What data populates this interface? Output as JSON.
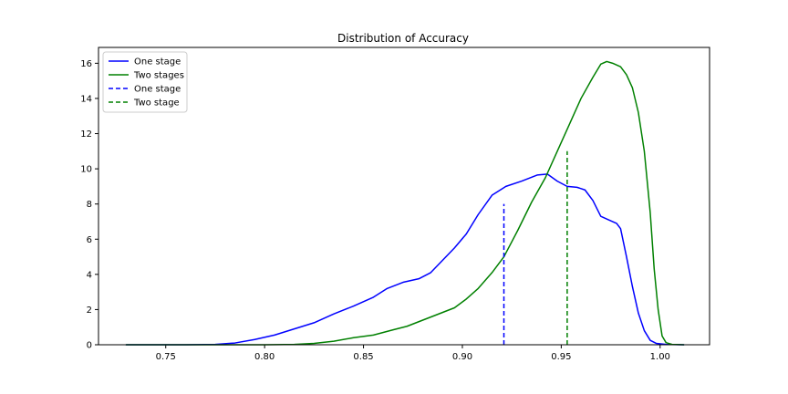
{
  "chart_data": {
    "type": "line",
    "title": "Distribution of Accuracy",
    "xlabel": "",
    "ylabel": "",
    "xlim": [
      0.716,
      1.025
    ],
    "ylim": [
      0,
      16.9
    ],
    "x_ticks": [
      0.75,
      0.8,
      0.85,
      0.9,
      0.95,
      1.0
    ],
    "x_tick_labels": [
      "0.75",
      "0.80",
      "0.85",
      "0.90",
      "0.95",
      "1.00"
    ],
    "y_ticks": [
      0,
      2,
      4,
      6,
      8,
      10,
      12,
      14,
      16
    ],
    "y_tick_labels": [
      "0",
      "2",
      "4",
      "6",
      "8",
      "10",
      "12",
      "14",
      "16"
    ],
    "grid": false,
    "legend_position": "top-left",
    "series": [
      {
        "name": "One stage",
        "style": "solid",
        "color": "#0000ff",
        "points": [
          [
            0.73,
            0.0
          ],
          [
            0.76,
            0.0
          ],
          [
            0.775,
            0.02
          ],
          [
            0.785,
            0.1
          ],
          [
            0.795,
            0.3
          ],
          [
            0.805,
            0.55
          ],
          [
            0.815,
            0.9
          ],
          [
            0.825,
            1.25
          ],
          [
            0.835,
            1.75
          ],
          [
            0.845,
            2.2
          ],
          [
            0.855,
            2.7
          ],
          [
            0.862,
            3.2
          ],
          [
            0.87,
            3.55
          ],
          [
            0.878,
            3.75
          ],
          [
            0.884,
            4.1
          ],
          [
            0.89,
            4.8
          ],
          [
            0.896,
            5.5
          ],
          [
            0.902,
            6.3
          ],
          [
            0.908,
            7.4
          ],
          [
            0.915,
            8.5
          ],
          [
            0.922,
            9.0
          ],
          [
            0.93,
            9.3
          ],
          [
            0.938,
            9.65
          ],
          [
            0.943,
            9.7
          ],
          [
            0.948,
            9.3
          ],
          [
            0.953,
            9.0
          ],
          [
            0.958,
            8.95
          ],
          [
            0.962,
            8.8
          ],
          [
            0.966,
            8.2
          ],
          [
            0.97,
            7.3
          ],
          [
            0.975,
            7.05
          ],
          [
            0.978,
            6.9
          ],
          [
            0.98,
            6.6
          ],
          [
            0.983,
            5.0
          ],
          [
            0.986,
            3.3
          ],
          [
            0.989,
            1.8
          ],
          [
            0.992,
            0.8
          ],
          [
            0.995,
            0.25
          ],
          [
            0.998,
            0.08
          ],
          [
            1.003,
            0.02
          ],
          [
            1.012,
            0.0
          ]
        ]
      },
      {
        "name": "Two stages",
        "style": "solid",
        "color": "#008000",
        "points": [
          [
            0.73,
            0.0
          ],
          [
            0.8,
            0.0
          ],
          [
            0.815,
            0.02
          ],
          [
            0.825,
            0.08
          ],
          [
            0.835,
            0.2
          ],
          [
            0.845,
            0.4
          ],
          [
            0.855,
            0.55
          ],
          [
            0.865,
            0.85
          ],
          [
            0.872,
            1.05
          ],
          [
            0.88,
            1.4
          ],
          [
            0.888,
            1.75
          ],
          [
            0.896,
            2.1
          ],
          [
            0.902,
            2.6
          ],
          [
            0.908,
            3.2
          ],
          [
            0.915,
            4.1
          ],
          [
            0.921,
            5.0
          ],
          [
            0.928,
            6.5
          ],
          [
            0.935,
            8.1
          ],
          [
            0.942,
            9.5
          ],
          [
            0.948,
            11.0
          ],
          [
            0.954,
            12.5
          ],
          [
            0.96,
            14.0
          ],
          [
            0.966,
            15.2
          ],
          [
            0.97,
            15.95
          ],
          [
            0.973,
            16.1
          ],
          [
            0.976,
            16.0
          ],
          [
            0.98,
            15.8
          ],
          [
            0.983,
            15.35
          ],
          [
            0.986,
            14.6
          ],
          [
            0.989,
            13.2
          ],
          [
            0.992,
            11.0
          ],
          [
            0.995,
            7.5
          ],
          [
            0.997,
            4.3
          ],
          [
            0.999,
            2.0
          ],
          [
            1.001,
            0.5
          ],
          [
            1.003,
            0.12
          ],
          [
            1.006,
            0.02
          ],
          [
            1.012,
            0.0
          ]
        ]
      }
    ],
    "vlines": [
      {
        "name": "One stage",
        "x": 0.921,
        "ymin": 0,
        "ymax": 8.0,
        "style": "dashed",
        "color": "#0000ff"
      },
      {
        "name": "Two stage",
        "x": 0.953,
        "ymin": 0,
        "ymax": 11.0,
        "style": "dashed",
        "color": "#008000"
      }
    ]
  }
}
